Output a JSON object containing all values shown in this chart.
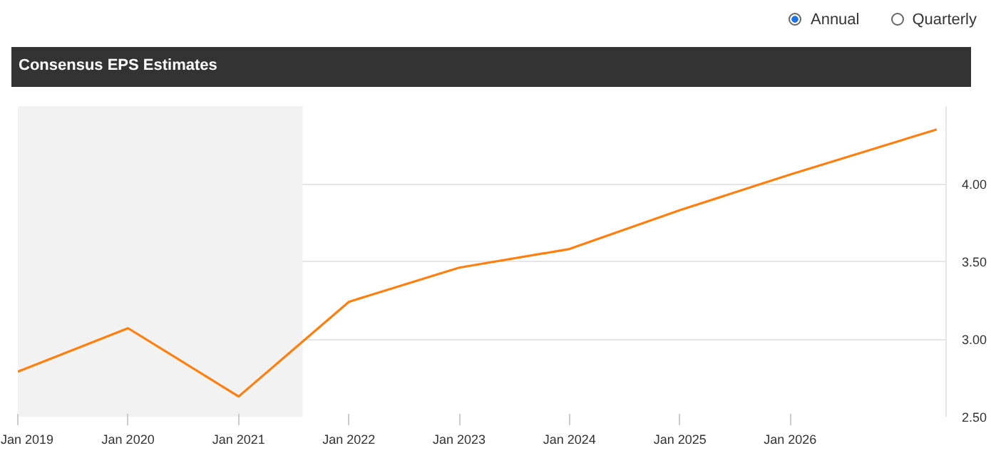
{
  "chart_data": {
    "type": "line",
    "title": "Consensus EPS Estimates",
    "annotations": [
      "Annual",
      "Quarterly"
    ],
    "x": [
      "2019-01",
      "2020-01",
      "2021-01",
      "2022-01",
      "2023-01",
      "2024-01",
      "2025-01",
      "2026-01",
      "2027-05"
    ],
    "series": [
      {
        "color": "#ff7f0e",
        "values": [
          2.79,
          3.07,
          2.63,
          3.24,
          3.46,
          3.58,
          3.83,
          4.06,
          4.35
        ]
      }
    ],
    "xlim": [
      "2019-01",
      "2027-06"
    ],
    "xticks": [
      {
        "value": "2019-01",
        "label": "Jan 2019"
      },
      {
        "value": "2020-01",
        "label": "Jan 2020"
      },
      {
        "value": "2021-01",
        "label": "Jan 2021"
      },
      {
        "value": "2022-01",
        "label": "Jan 2022"
      },
      {
        "value": "2023-01",
        "label": "Jan 2023"
      },
      {
        "value": "2024-01",
        "label": "Jan 2024"
      },
      {
        "value": "2025-01",
        "label": "Jan 2025"
      },
      {
        "value": "2026-01",
        "label": "Jan 2026"
      }
    ],
    "ylim": [
      2.5,
      4.5
    ],
    "yticks": [
      {
        "value": 2.5,
        "label": "2.50"
      },
      {
        "value": 3.0,
        "label": "3.00"
      },
      {
        "value": 3.5,
        "label": "3.50"
      },
      {
        "value": 4.0,
        "label": "4.00"
      }
    ],
    "bands": [
      {
        "axis": "x",
        "from": "2019-01",
        "to": "2021-08",
        "color": "#f2f2f2"
      }
    ],
    "grid": "y",
    "marker": "none",
    "line_style": "solid"
  }
}
